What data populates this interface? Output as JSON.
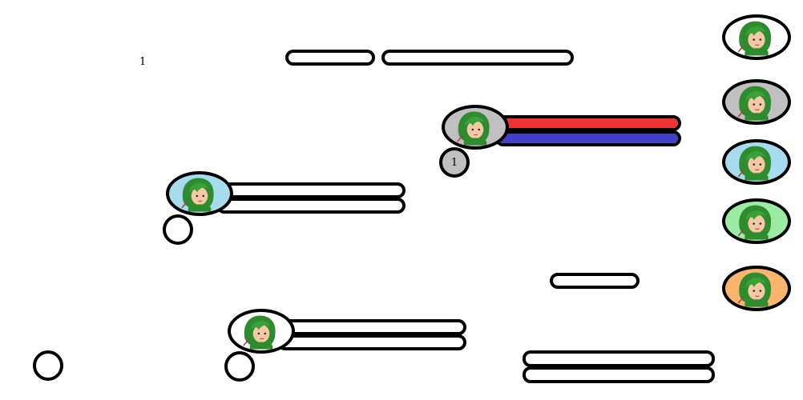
{
  "top_counter": "1",
  "colors": {
    "outline": "#000000",
    "bar_empty": "#ffffff",
    "health": "#ee3333",
    "mana": "#4040c8",
    "portrait_white": "#ffffff",
    "portrait_grey": "#c0c0c0",
    "portrait_blue": "#a6dcee",
    "portrait_green": "#9ceba4",
    "portrait_orange": "#fbb46e"
  },
  "icons": {
    "portrait": "green-haired-hero-portrait-icon"
  },
  "selected_unit": {
    "portrait_bg": "grey",
    "health_fraction": 1.0,
    "mana_fraction": 1.0,
    "level": "1"
  },
  "blue_unit": {
    "portrait_bg": "blue",
    "health_fraction": 0,
    "mana_fraction": 0,
    "level": ""
  },
  "white_unit": {
    "portrait_bg": "white",
    "health_fraction": 0,
    "mana_fraction": 0,
    "level": ""
  },
  "roster": [
    {
      "portrait_bg": "white"
    },
    {
      "portrait_bg": "grey"
    },
    {
      "portrait_bg": "blue"
    },
    {
      "portrait_bg": "green"
    },
    {
      "portrait_bg": "orange"
    }
  ],
  "bottom_left_badge": {
    "value": ""
  }
}
